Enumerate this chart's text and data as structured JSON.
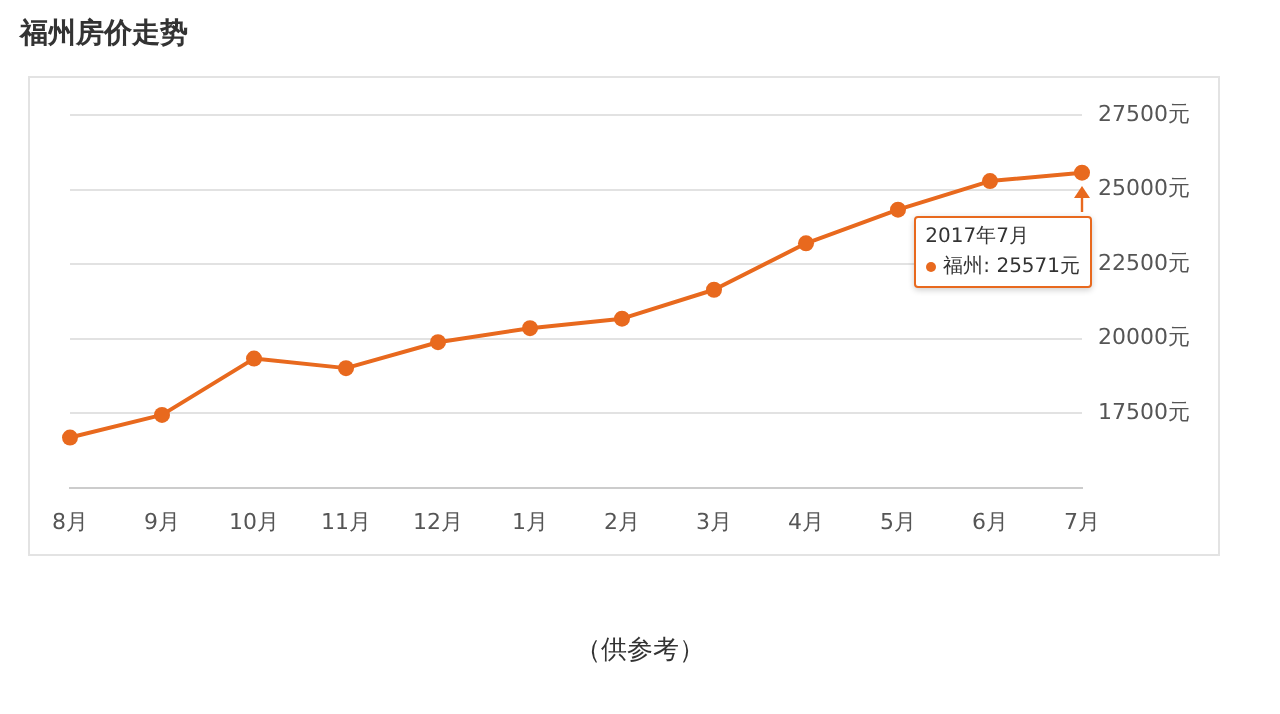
{
  "chart_data": {
    "type": "line",
    "title": "福州房价走势",
    "categories": [
      "8月",
      "9月",
      "10月",
      "11月",
      "12月",
      "1月",
      "2月",
      "3月",
      "4月",
      "5月",
      "6月",
      "7月"
    ],
    "series": [
      {
        "color": "#e8691e",
        "values": [
          16680,
          17440,
          19330,
          19010,
          19880,
          20350,
          20670,
          21640,
          23200,
          24330,
          25290,
          25571
        ]
      }
    ],
    "ylim": [
      15000,
      27500
    ],
    "yticks": [
      {
        "value": 17500,
        "label": "17500元"
      },
      {
        "value": 20000,
        "label": "20000元"
      },
      {
        "value": 22500,
        "label": "22500元"
      },
      {
        "value": 25000,
        "label": "25000元"
      },
      {
        "value": 27500,
        "label": "27500元"
      }
    ],
    "grid": "y",
    "marker": "circle",
    "line_style": "solid",
    "legend": false,
    "annotations": [
      "2017年7月",
      "福州: 25571元",
      "（供参考）"
    ]
  }
}
